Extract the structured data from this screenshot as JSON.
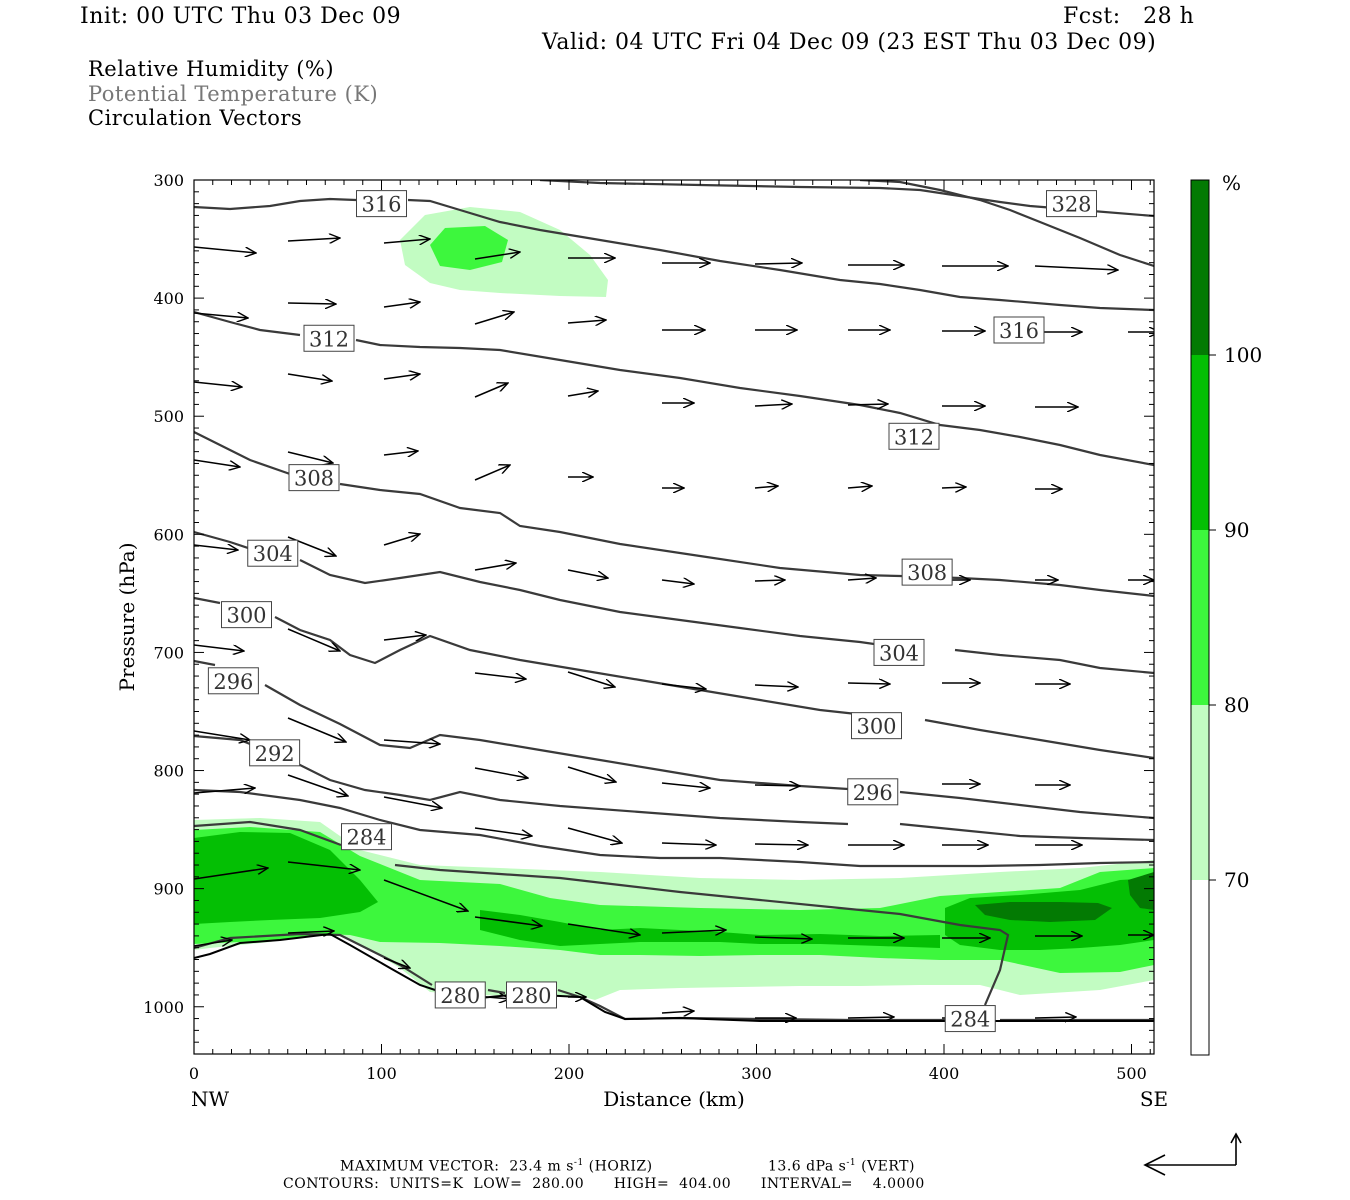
{
  "header": {
    "init": "Init: 00 UTC Thu 03 Dec 09",
    "fcst": "Fcst:   28 h",
    "valid": "Valid: 04 UTC Fri 04 Dec 09 (23 EST Thu 03 Dec 09)"
  },
  "legend": {
    "line1": "Relative Humidity (%)",
    "line2": "Potential Temperature (K)",
    "line3": "Circulation Vectors"
  },
  "colors": {
    "rh70": "#c2fcc2",
    "rh80": "#3df73d",
    "rh90": "#04bf04",
    "rh100": "#037a03",
    "contour": "#3a3a3a",
    "potential_temp_text": "#777777"
  },
  "chart_data": {
    "type": "cross-section",
    "xlabel": "Distance (km)",
    "ylabel": "Pressure (hPa)",
    "xlim": [
      0,
      512
    ],
    "ylim": [
      1040,
      300
    ],
    "x_ticks": [
      0,
      100,
      200,
      300,
      400,
      500
    ],
    "y_ticks": [
      300,
      400,
      500,
      600,
      700,
      800,
      900,
      1000
    ],
    "x_end_labels": {
      "left": "NW",
      "right": "SE"
    },
    "colorbar": {
      "unit": "%",
      "levels": [
        "70",
        "80",
        "90",
        "100"
      ]
    },
    "contour_labels": [
      {
        "text": "316",
        "x": 100,
        "p": 320
      },
      {
        "text": "328",
        "x": 468,
        "p": 320
      },
      {
        "text": "312",
        "x": 72,
        "p": 434
      },
      {
        "text": "316",
        "x": 440,
        "p": 427
      },
      {
        "text": "308",
        "x": 64,
        "p": 552
      },
      {
        "text": "312",
        "x": 384,
        "p": 517
      },
      {
        "text": "304",
        "x": 42,
        "p": 616
      },
      {
        "text": "308",
        "x": 391,
        "p": 632
      },
      {
        "text": "300",
        "x": 28,
        "p": 668
      },
      {
        "text": "304",
        "x": 376,
        "p": 700
      },
      {
        "text": "296",
        "x": 21,
        "p": 724
      },
      {
        "text": "300",
        "x": 364,
        "p": 762
      },
      {
        "text": "292",
        "x": 43,
        "p": 785
      },
      {
        "text": "296",
        "x": 362,
        "p": 818
      },
      {
        "text": "284",
        "x": 92,
        "p": 856
      },
      {
        "text": "280",
        "x": 142,
        "p": 990
      },
      {
        "text": "280",
        "x": 180,
        "p": 990
      },
      {
        "text": "284",
        "x": 414,
        "p": 1010
      }
    ],
    "footer": {
      "max_vector": "MAXIMUM VECTOR:  23.4 m s",
      "horiz": " (HORIZ)",
      "vert_value": "13.6 dPa s",
      "vert": " (VERT)",
      "exponent": "-1",
      "contours": "CONTOURS:  UNITS=K  LOW=  280.00      HIGH=  404.00      INTERVAL=    4.0000"
    }
  }
}
